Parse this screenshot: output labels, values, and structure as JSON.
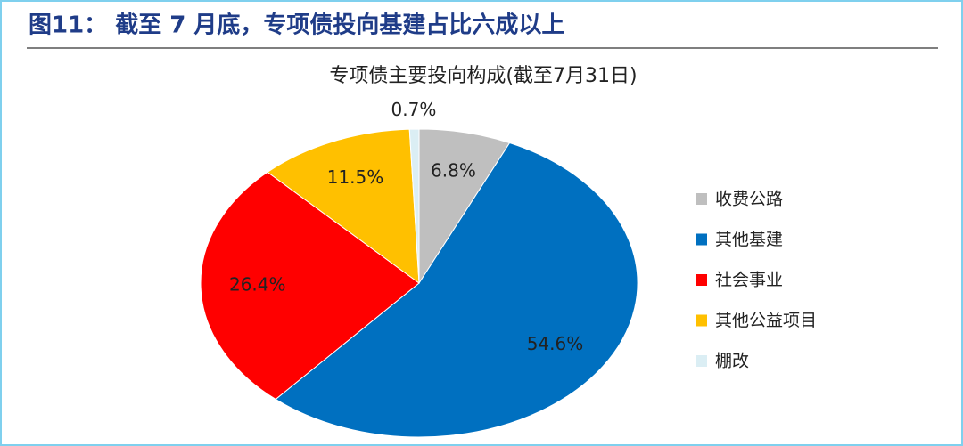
{
  "figure_title": "图11：  截至 7 月底，专项债投向基建占比六成以上",
  "chart_data": {
    "type": "pie",
    "title": "专项债主要投向构成(截至7月31日)",
    "categories": [
      "收费公路",
      "其他基建",
      "社会事业",
      "其他公益项目",
      "棚改"
    ],
    "values": [
      6.8,
      54.6,
      26.4,
      11.5,
      0.7
    ],
    "value_labels": [
      "6.8%",
      "54.6%",
      "26.4%",
      "11.5%",
      "0.7%"
    ],
    "colors": [
      "#bfbfbf",
      "#0070c0",
      "#ff0000",
      "#ffc000",
      "#dbeef4"
    ],
    "legend": "right"
  }
}
